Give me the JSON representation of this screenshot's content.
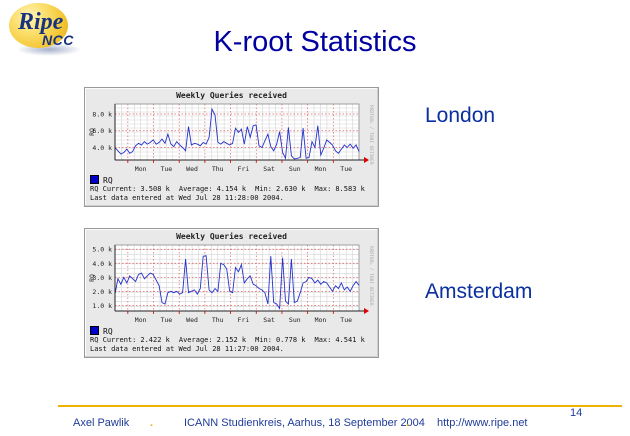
{
  "title": "K-root Statistics",
  "logo": {
    "line1": "Ripe",
    "line2": "NCC"
  },
  "page_number": "14",
  "footer": {
    "author": "Axel Pawlik",
    "separator": ".",
    "event": "ICANN Studienkreis, Aarhus, 18 September 2004",
    "url": "http://www.ripe.net"
  },
  "colors": {
    "title_blue": "#0000A0",
    "footer_blue": "#1F3C99",
    "gold": "#F0B400",
    "line_blue": "#2233CC",
    "grid_red": "#E06060",
    "panel_bg": "#E9E9E9",
    "legend_blue": "#0000CC"
  },
  "chart_data": [
    {
      "type": "line",
      "location": "London",
      "title": "Weekly Queries received",
      "ylabel": "RQ",
      "series_name": "RQ",
      "x_day_labels": [
        "Mon",
        "Tue",
        "Wed",
        "Thu",
        "Fri",
        "Sat",
        "Sun",
        "Mon",
        "Tue"
      ],
      "yticks": [
        4,
        6,
        8
      ],
      "ytick_labels": [
        "4.0 k",
        "6.0 k",
        "8.0 k"
      ],
      "ylim": [
        2.5,
        9.2
      ],
      "unit": "k queries",
      "line_color": "#2233CC",
      "signature": "RRDTOOL / TOBI OETIKER",
      "values_k": [
        4.0,
        3.6,
        3.2,
        3.4,
        3.8,
        3.3,
        3.5,
        4.2,
        4.5,
        4.3,
        4.7,
        4.4,
        4.6,
        4.9,
        4.4,
        4.6,
        5.0,
        4.5,
        5.6,
        4.4,
        4.1,
        4.7,
        4.3,
        4.0,
        3.6,
        6.5,
        4.3,
        4.5,
        4.4,
        4.2,
        4.6,
        4.4,
        5.2,
        8.58,
        7.9,
        4.6,
        4.4,
        4.7,
        4.5,
        4.3,
        4.5,
        6.3,
        5.8,
        6.2,
        4.4,
        6.5,
        5.2,
        6.6,
        6.7,
        4.2,
        4.0,
        4.8,
        5.6,
        4.1,
        3.6,
        4.4,
        5.9,
        3.4,
        2.7,
        6.4,
        3.0,
        2.63,
        2.7,
        2.8,
        6.3,
        2.7,
        2.8,
        4.7,
        4.0,
        6.6,
        3.1,
        3.9,
        4.9,
        4.6,
        4.3,
        3.6,
        3.3,
        3.8,
        4.3,
        4.0,
        4.4,
        3.9,
        4.3,
        3.51
      ],
      "stats": [
        {
          "label": "RQ Current:",
          "value": "3.508 k"
        },
        {
          "label": "Average:",
          "value": "4.154 k"
        },
        {
          "label": "Min:",
          "value": "2.630 k"
        },
        {
          "label": "Max:",
          "value": "8.583 k"
        }
      ],
      "last_data": "Last data entered at Wed Jul 28 11:28:00 2004."
    },
    {
      "type": "line",
      "location": "Amsterdam",
      "title": "Weekly Queries received",
      "ylabel": "RQ",
      "series_name": "RQ",
      "x_day_labels": [
        "Mon",
        "Tue",
        "Wed",
        "Thu",
        "Fri",
        "Sat",
        "Sun",
        "Mon",
        "Tue"
      ],
      "yticks": [
        1,
        2,
        3,
        4,
        5
      ],
      "ytick_labels": [
        "1.0 k",
        "2.0 k",
        "3.0 k",
        "4.0 k",
        "5.0 k"
      ],
      "ylim": [
        0.6,
        5.3
      ],
      "unit": "k queries",
      "line_color": "#2233CC",
      "signature": "RRDTOOL / TOBI OETIKER",
      "values_k": [
        1.8,
        2.9,
        2.5,
        3.0,
        2.6,
        3.1,
        2.9,
        2.7,
        3.2,
        3.3,
        2.9,
        3.1,
        3.3,
        3.2,
        2.8,
        2.4,
        1.2,
        1.1,
        1.9,
        2.0,
        1.9,
        2.0,
        1.8,
        1.9,
        4.3,
        1.9,
        2.0,
        2.1,
        1.8,
        2.2,
        4.5,
        4.54,
        2.1,
        1.9,
        2.2,
        2.0,
        4.0,
        3.9,
        3.6,
        2.0,
        1.9,
        3.7,
        3.4,
        3.9,
        2.6,
        2.9,
        3.1,
        2.5,
        2.4,
        2.2,
        2.1,
        1.9,
        1.1,
        4.5,
        1.2,
        1.1,
        0.78,
        4.4,
        1.3,
        1.1,
        4.3,
        1.2,
        1.3,
        1.9,
        2.6,
        2.7,
        3.0,
        2.9,
        2.6,
        2.8,
        2.5,
        2.7,
        2.6,
        2.3,
        2.0,
        2.4,
        2.2,
        2.6,
        2.1,
        2.3,
        2.0,
        2.4,
        2.7,
        2.42
      ],
      "stats": [
        {
          "label": "RQ Current:",
          "value": "2.422 k"
        },
        {
          "label": "Average:",
          "value": "2.152 k"
        },
        {
          "label": "Min:",
          "value": "0.778 k"
        },
        {
          "label": "Max:",
          "value": "4.541 k"
        }
      ],
      "last_data": "Last data entered at Wed Jul 28 11:27:00 2004."
    }
  ]
}
